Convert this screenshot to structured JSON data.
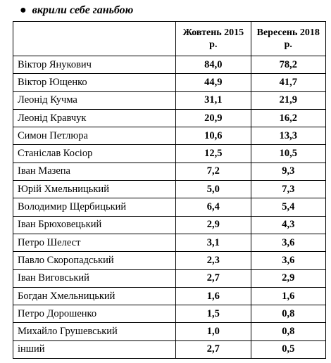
{
  "heading": "вкрили себе ганьбою",
  "table": {
    "header": [
      "",
      "Жовтень 2015 р.",
      "Вересень 2018 р."
    ],
    "rows": [
      [
        "Віктор Янукович",
        "84,0",
        "78,2"
      ],
      [
        "Віктор Ющенко",
        "44,9",
        "41,7"
      ],
      [
        "Леонід Кучма",
        "31,1",
        "21,9"
      ],
      [
        "Леонід Кравчук",
        "20,9",
        "16,2"
      ],
      [
        "Симон Петлюра",
        "10,6",
        "13,3"
      ],
      [
        "Станіслав Косіор",
        "12,5",
        "10,5"
      ],
      [
        "Іван Мазепа",
        "7,2",
        "9,3"
      ],
      [
        "Юрій Хмельницький",
        "5,0",
        "7,3"
      ],
      [
        "Володимир Щербицький",
        "6,4",
        "5,4"
      ],
      [
        "Іван Брюховецький",
        "2,9",
        "4,3"
      ],
      [
        "Петро Шелест",
        "3,1",
        "3,6"
      ],
      [
        "Павло Скоропадський",
        "2,3",
        "3,6"
      ],
      [
        "Іван Виговський",
        "2,7",
        "2,9"
      ],
      [
        "Богдан Хмельницький",
        "1,6",
        "1,6"
      ],
      [
        "Петро Дорошенко",
        "1,5",
        "0,8"
      ],
      [
        "Михайло Грушевський",
        "1,0",
        "0,8"
      ],
      [
        "інший",
        "2,7",
        "0,5"
      ]
    ]
  }
}
